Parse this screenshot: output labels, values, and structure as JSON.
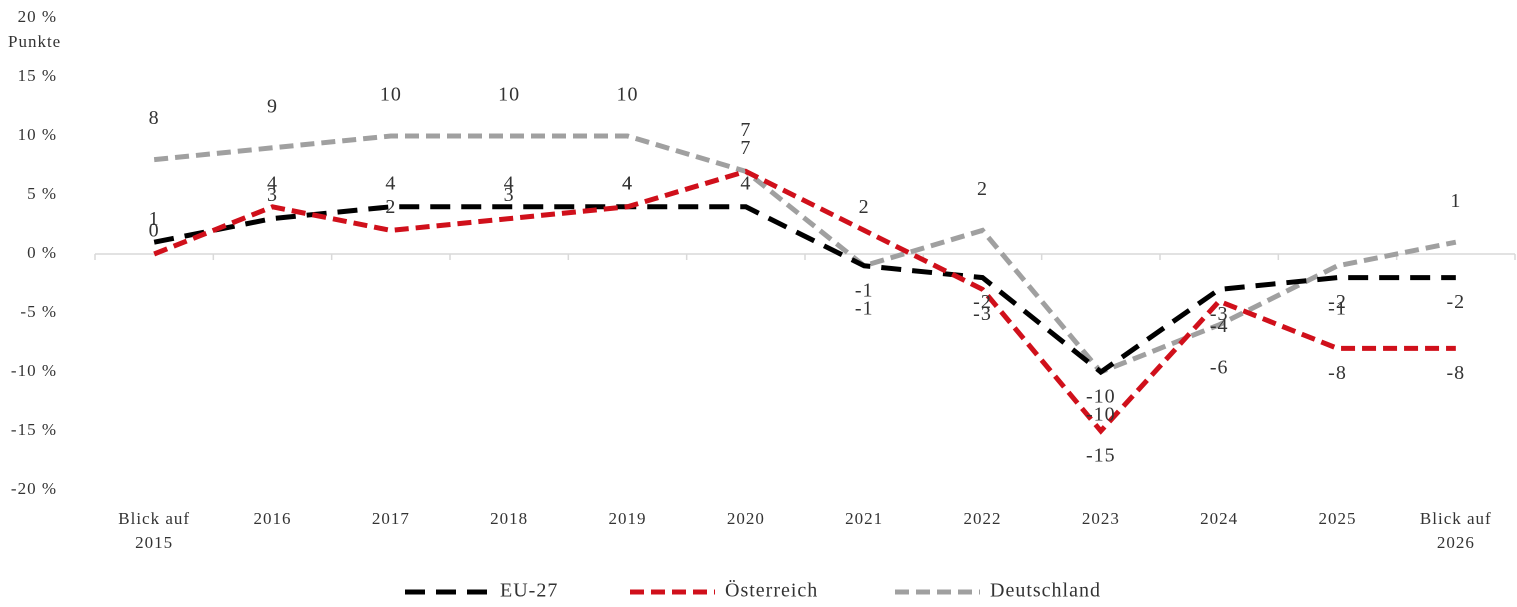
{
  "chart_data": {
    "type": "line",
    "y_axis_label": "Punkte",
    "categories": [
      "Blick auf 2015",
      "2016",
      "2017",
      "2018",
      "2019",
      "2020",
      "2021",
      "2022",
      "2023",
      "2024",
      "2025",
      "Blick auf 2026"
    ],
    "series": [
      {
        "name": "EU-27",
        "color": "#000000",
        "values": [
          1,
          3,
          4,
          4,
          4,
          4,
          -1,
          -2,
          -10,
          -3,
          -2,
          -2
        ]
      },
      {
        "name": "Österreich",
        "color": "#d0101b",
        "values": [
          0,
          4,
          2,
          3,
          4,
          7,
          2,
          -3,
          -15,
          -4,
          -8,
          -8
        ]
      },
      {
        "name": "Deutschland",
        "color": "#a0a0a0",
        "values": [
          8,
          9,
          10,
          10,
          10,
          7,
          -1,
          2,
          -10,
          -6,
          -1,
          1
        ]
      }
    ],
    "ylim": [
      -20,
      20
    ],
    "yticks": [
      {
        "value": 20,
        "label": "20 %"
      },
      {
        "value": 15,
        "label": "15 %"
      },
      {
        "value": 10,
        "label": "10 %"
      },
      {
        "value": 5,
        "label": "5 %"
      },
      {
        "value": 0,
        "label": "0 %"
      },
      {
        "value": -5,
        "label": "-5 %"
      },
      {
        "value": -10,
        "label": "-10 %"
      },
      {
        "value": -15,
        "label": "-15 %"
      },
      {
        "value": -20,
        "label": "-20 %"
      }
    ],
    "legend": "bottom"
  }
}
